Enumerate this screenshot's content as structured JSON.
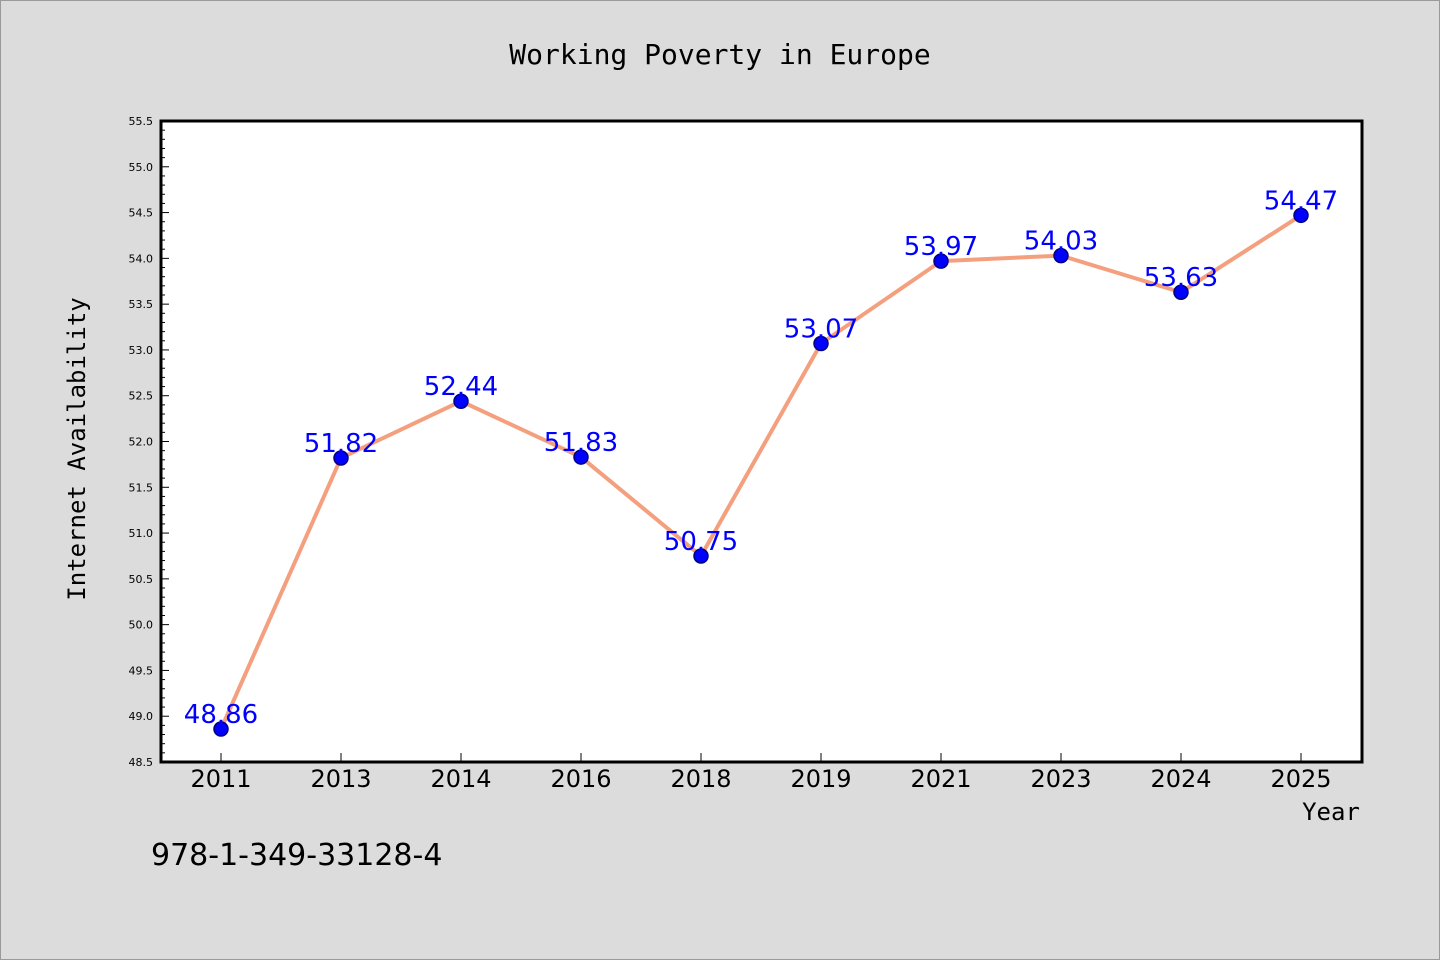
{
  "chart_data": {
    "type": "line",
    "title": "Working Poverty in Europe",
    "xlabel": "Year",
    "ylabel": "Internet Availability",
    "categories": [
      "2011",
      "2013",
      "2014",
      "2016",
      "2018",
      "2019",
      "2021",
      "2023",
      "2024",
      "2025"
    ],
    "series": [
      {
        "values": [
          48.86,
          51.82,
          52.44,
          51.83,
          50.75,
          53.07,
          53.97,
          54.03,
          53.63,
          54.47
        ]
      }
    ],
    "data_labels": [
      "48.86",
      "51.82",
      "52.44",
      "51.83",
      "50.75",
      "53.07",
      "53.97",
      "54.03",
      "53.63",
      "54.47"
    ],
    "ylim": [
      48.5,
      55.5
    ],
    "y_ticks": [
      "48.5",
      "49.0",
      "49.5",
      "50.0",
      "50.5",
      "51.0",
      "51.5",
      "52.0",
      "52.5",
      "53.0",
      "53.5",
      "54.0",
      "54.5",
      "55.0",
      "55.5"
    ],
    "grid": false,
    "legend": "none",
    "colors": {
      "line": "#f4a07e",
      "marker": "#0000ff",
      "marker_edge": "#000080",
      "label": "#0000ff",
      "plot_bg": "#ffffff",
      "figure_bg": "#dcdcdc"
    }
  },
  "annotation": "978-1-349-33128-4"
}
